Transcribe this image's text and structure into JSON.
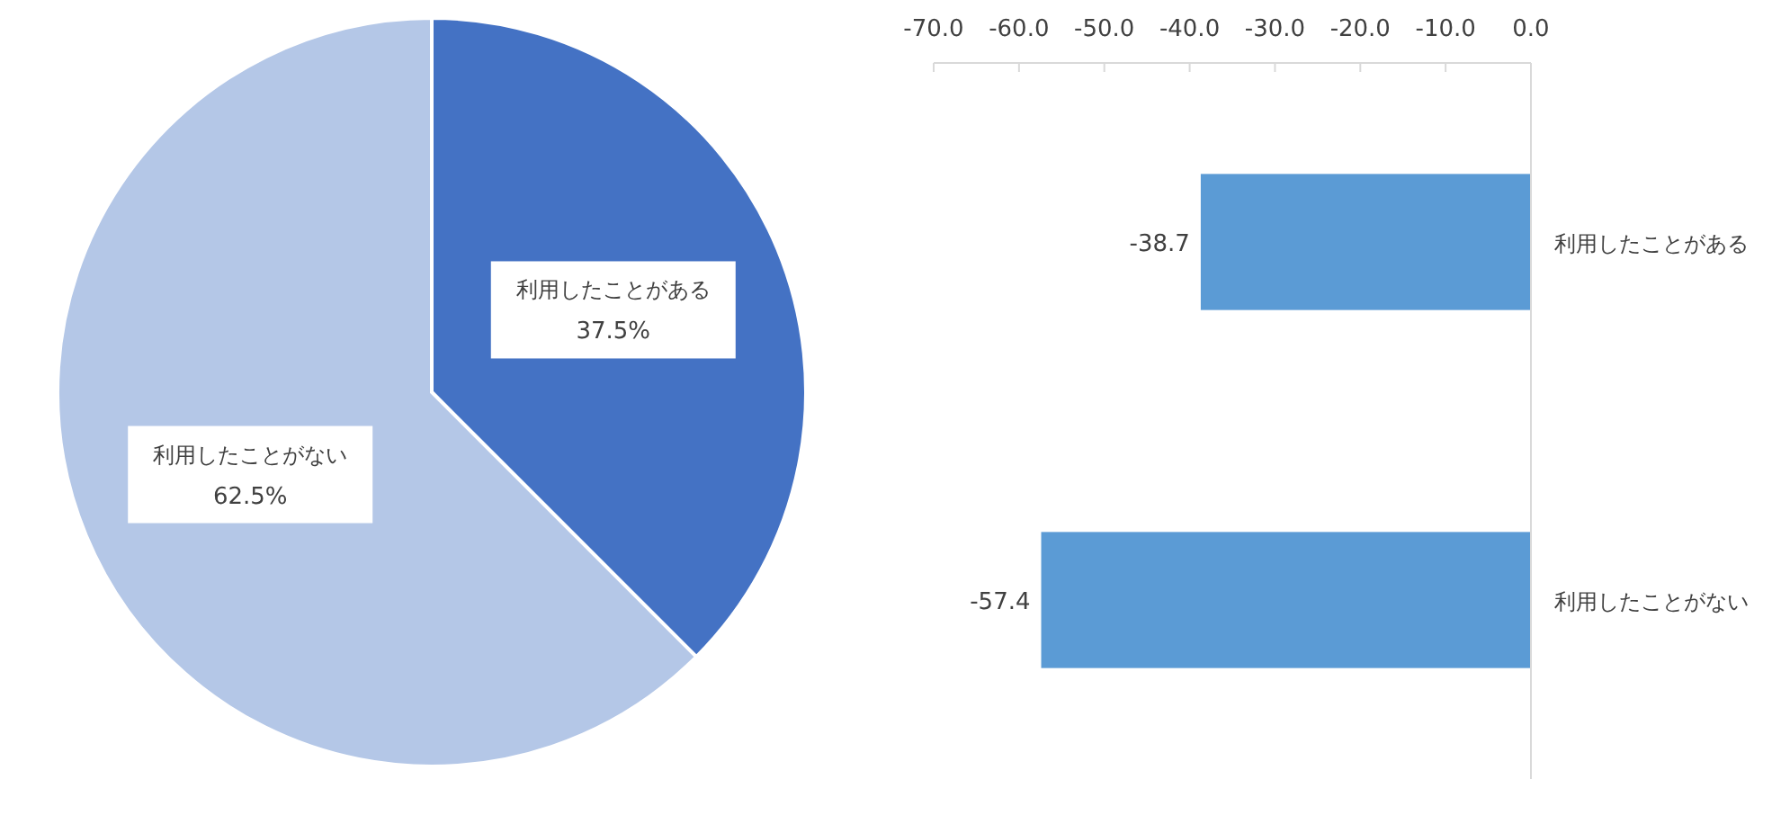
{
  "chart_data": [
    {
      "type": "pie",
      "categories": [
        "利用したことがある",
        "利用したことがない"
      ],
      "values": [
        37.5,
        62.5
      ],
      "colors": [
        "#4472c4",
        "#b4c7e7"
      ],
      "value_labels": [
        "37.5%",
        "62.5%"
      ]
    },
    {
      "type": "bar",
      "orientation": "horizontal",
      "categories": [
        "利用したことがある",
        "利用したことがない"
      ],
      "values": [
        -38.7,
        -57.4
      ],
      "color": "#5b9bd5",
      "xlim": [
        -70,
        0
      ],
      "xticks": [
        {
          "value": -70,
          "label": "-70.0"
        },
        {
          "value": -60,
          "label": "-60.0"
        },
        {
          "value": -50,
          "label": "-50.0"
        },
        {
          "value": -40,
          "label": "-40.0"
        },
        {
          "value": -30,
          "label": "-30.0"
        },
        {
          "value": -20,
          "label": "-20.0"
        },
        {
          "value": -10,
          "label": "-10.0"
        },
        {
          "value": 0,
          "label": "0.0"
        }
      ],
      "data_labels": true,
      "grid": false
    }
  ]
}
